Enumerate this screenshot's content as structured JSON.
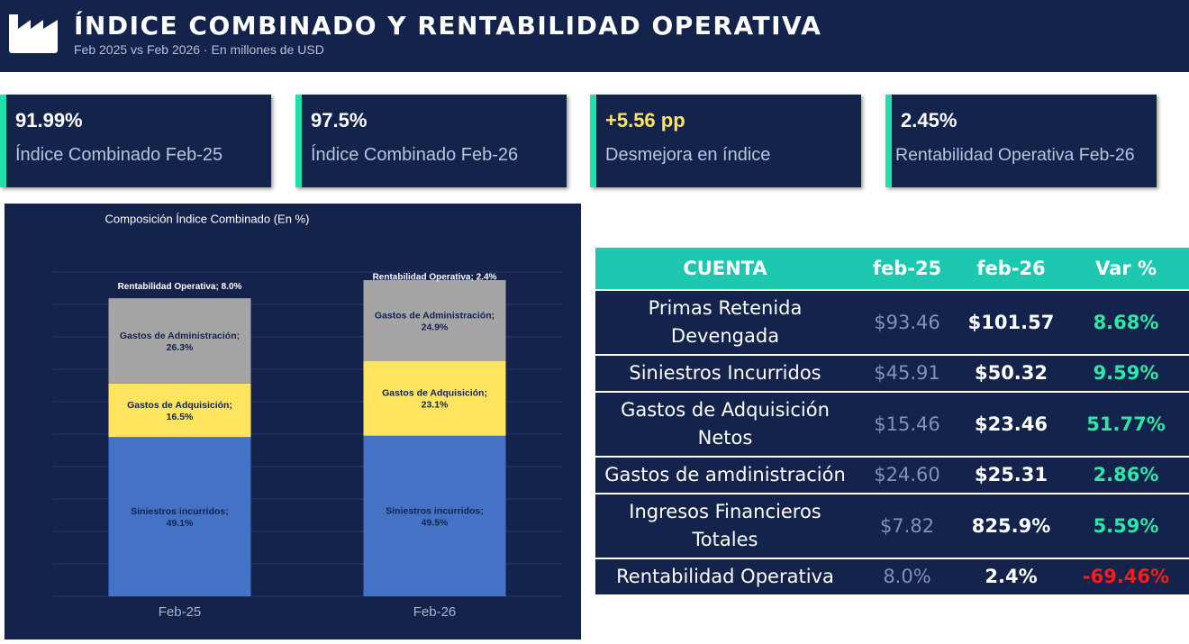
{
  "header": {
    "title": "ÍNDICE COMBINADO Y RENTABILIDAD OPERATIVA",
    "subtitle": "Feb 2025 vs Feb 2026 · En millones de USD"
  },
  "kpis": [
    {
      "value": "91.99%",
      "label": "Índice Combinado Feb-25"
    },
    {
      "value": "97.5%",
      "label": "Índice Combinado Feb-26"
    },
    {
      "value": "+5.56 pp",
      "label": "Desmejora en índice"
    },
    {
      "value": "2.45%",
      "label": "Rentabilidad Operativa Feb-26"
    }
  ],
  "chart_data": {
    "type": "stacked_bar",
    "title": "Composición Índice Combinado (En %)",
    "categories": [
      "Feb-25",
      "Feb-26"
    ],
    "ylim": [
      0,
      100
    ],
    "yticks": [
      0,
      10,
      20,
      30,
      40,
      50,
      60,
      70,
      80,
      90,
      100
    ],
    "grid": true,
    "series": [
      {
        "name": "Siniestros incurridos",
        "color": "#4472c4",
        "values": [
          49.1,
          49.5
        ],
        "value_labels": [
          "Siniestros incurridos; 49.1%",
          "Siniestros incurridos; 49.5%"
        ]
      },
      {
        "name": "Gastos de Adquisición",
        "color": "#ffe55f",
        "values": [
          16.5,
          23.1
        ],
        "value_labels": [
          "Gastos de Adquisición; 16.5%",
          "Gastos de Adquisición; 23.1%"
        ]
      },
      {
        "name": "Gastos de Administración",
        "color": "#a5a5a5",
        "values": [
          26.3,
          24.9
        ],
        "value_labels": [
          "Gastos de Administración; 26.3%",
          "Gastos de Administración; 24.9%"
        ]
      },
      {
        "name": "Rentabilidad Operativa",
        "color": "none",
        "values": [
          8.0,
          2.4
        ],
        "value_labels": [
          "Rentabilidad Operativa; 8.0%",
          "Rentabilidad Operativa; 2.4%"
        ]
      }
    ]
  },
  "table": {
    "header": [
      "CUENTA",
      "feb-25",
      "feb-26",
      "Var %"
    ],
    "rows": [
      [
        "Primas Retenida Devengada",
        "$93.46",
        "$101.57",
        "8.68%"
      ],
      [
        "Siniestros Incurridos",
        "$45.91",
        "$50.32",
        "9.59%"
      ],
      [
        "Gastos de Adquisición Netos",
        "$15.46",
        "$23.46",
        "51.77%"
      ],
      [
        "Gastos de amdinistración",
        "$24.60",
        "$25.31",
        "2.86%"
      ],
      [
        "Ingresos Financieros Totales",
        "$7.82",
        "825.9%",
        "5.59%"
      ],
      [
        "Rentabilidad Operativa",
        "8.0%",
        "2.4%",
        "-69.46%"
      ]
    ]
  }
}
